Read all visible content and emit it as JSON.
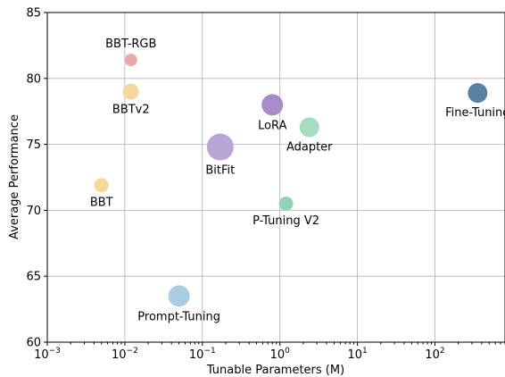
{
  "chart_data": {
    "type": "scatter",
    "title": "",
    "xlabel": "Tunable Parameters (M)",
    "ylabel": "Average Performance",
    "xscale": "log",
    "xlim": [
      0.001,
      800
    ],
    "ylim": [
      60,
      85
    ],
    "grid": true,
    "x_ticks": [
      {
        "value": 0.001,
        "base": "10",
        "exp": "−3"
      },
      {
        "value": 0.01,
        "base": "10",
        "exp": "−2"
      },
      {
        "value": 0.1,
        "base": "10",
        "exp": "−1"
      },
      {
        "value": 1,
        "base": "10",
        "exp": "0"
      },
      {
        "value": 10,
        "base": "10",
        "exp": "1"
      },
      {
        "value": 100,
        "base": "10",
        "exp": "2"
      }
    ],
    "y_ticks": [
      60,
      65,
      70,
      75,
      80,
      85
    ],
    "points": [
      {
        "label": "BBT-RGB",
        "x": 0.012,
        "y": 81.4,
        "size": 7,
        "color": "#eaa8a8",
        "label_pos": "above"
      },
      {
        "label": "BBTv2",
        "x": 0.012,
        "y": 79.0,
        "size": 9,
        "color": "#f7d89c",
        "label_pos": "below"
      },
      {
        "label": "BBT",
        "x": 0.005,
        "y": 71.9,
        "size": 8,
        "color": "#f7d89c",
        "label_pos": "below"
      },
      {
        "label": "Prompt-Tuning",
        "x": 0.05,
        "y": 63.5,
        "size": 12,
        "color": "#a9cbe4",
        "label_pos": "below"
      },
      {
        "label": "BitFit",
        "x": 0.17,
        "y": 74.8,
        "size": 15,
        "color": "#b9a4d6",
        "label_pos": "below"
      },
      {
        "label": "LoRA",
        "x": 0.8,
        "y": 78.0,
        "size": 12,
        "color": "#a88bc9",
        "label_pos": "below"
      },
      {
        "label": "P-Tuning V2",
        "x": 1.2,
        "y": 70.5,
        "size": 8,
        "color": "#92d3b6",
        "label_pos": "below"
      },
      {
        "label": "Adapter",
        "x": 2.4,
        "y": 76.3,
        "size": 11,
        "color": "#a6dbbf",
        "label_pos": "below"
      },
      {
        "label": "Fine-Tuning",
        "x": 355,
        "y": 78.9,
        "size": 11,
        "color": "#5a819f",
        "label_pos": "below"
      }
    ]
  }
}
